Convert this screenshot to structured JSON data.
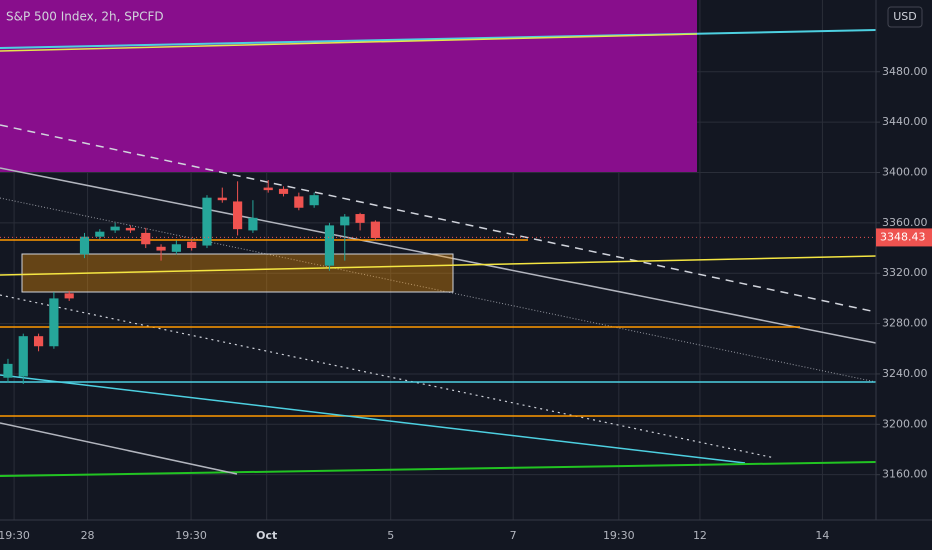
{
  "chart_data": {
    "type": "candlestick",
    "title": "S&P 500 Index, 2h, SPCFD",
    "currency": "USD",
    "last_price": 3348.43,
    "up_color": "#26a69a",
    "down_color": "#ef5350",
    "grid": true,
    "xlim": [
      -0.52,
      56.7
    ],
    "ylim": [
      3124,
      3537
    ],
    "yticks": [
      {
        "value": 3160,
        "label": "3160.00"
      },
      {
        "value": 3200,
        "label": "3200.00"
      },
      {
        "value": 3240,
        "label": "3240.00"
      },
      {
        "value": 3280,
        "label": "3280.00"
      },
      {
        "value": 3320,
        "label": "3320.00"
      },
      {
        "value": 3360,
        "label": "3360.00"
      },
      {
        "value": 3400,
        "label": "3400.00"
      },
      {
        "value": 3440,
        "label": "3440.00"
      },
      {
        "value": 3480,
        "label": "3480.00"
      }
    ],
    "xticks": [
      {
        "value": 0.4,
        "label": "19:30"
      },
      {
        "value": 5.2,
        "label": "28"
      },
      {
        "value": 11.96,
        "label": "19:30"
      },
      {
        "value": 16.9,
        "label": "Oct"
      },
      {
        "value": 25.0,
        "label": "5"
      },
      {
        "value": 33.0,
        "label": "7"
      },
      {
        "value": 39.9,
        "label": "19:30"
      },
      {
        "value": 45.2,
        "label": "12"
      },
      {
        "value": 53.2,
        "label": "14"
      }
    ],
    "x": [
      0,
      1,
      2,
      3,
      4,
      5,
      6,
      7,
      8,
      9,
      10,
      11,
      12,
      13,
      14,
      15,
      16,
      17,
      18,
      19,
      20,
      21,
      22,
      23,
      24
    ],
    "open": [
      3237,
      3238,
      3270,
      3262,
      3304,
      3335,
      3349,
      3354,
      3356,
      3352,
      3341,
      3337,
      3345,
      3342,
      3380,
      3377,
      3354,
      3388,
      3387,
      3381,
      3374,
      3326,
      3358,
      3367,
      3361
    ],
    "high": [
      3252,
      3272,
      3272,
      3305,
      3306,
      3352,
      3355,
      3360,
      3358,
      3356,
      3343,
      3346,
      3347,
      3382,
      3388,
      3393,
      3378,
      3394,
      3389,
      3384,
      3384,
      3360,
      3367,
      3368,
      3362
    ],
    "low": [
      3233,
      3232,
      3258,
      3260,
      3298,
      3332,
      3347,
      3352,
      3352,
      3340,
      3330,
      3335,
      3338,
      3340,
      3376,
      3350,
      3352,
      3384,
      3381,
      3370,
      3372,
      3322,
      3330,
      3354,
      3346
    ],
    "close": [
      3248,
      3270,
      3262,
      3300,
      3300,
      3349,
      3353,
      3357,
      3354,
      3343,
      3338,
      3343,
      3340,
      3380,
      3378,
      3355,
      3364,
      3386,
      3383,
      3372,
      3382,
      3358,
      3365,
      3360,
      3348
    ]
  }
}
